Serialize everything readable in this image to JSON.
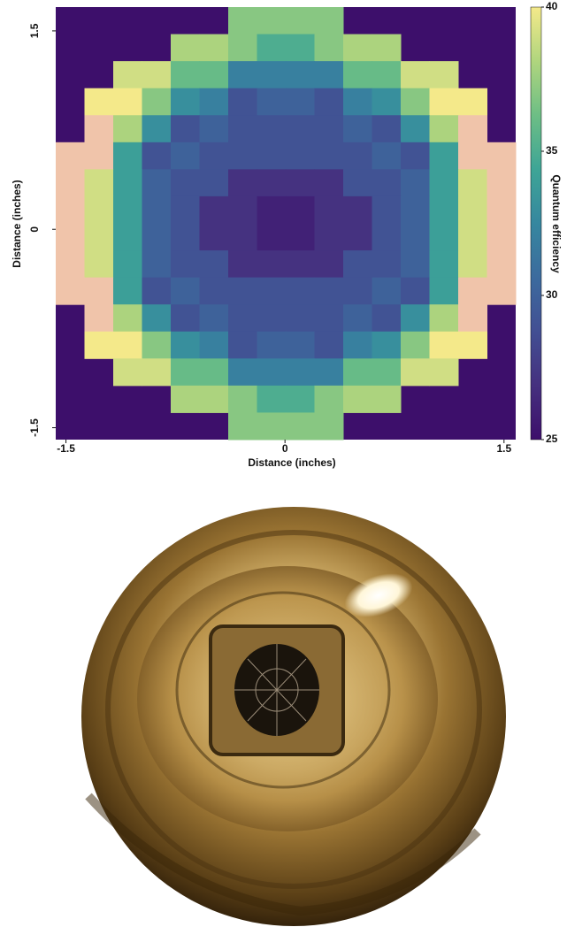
{
  "chart_data": {
    "type": "heatmap",
    "xlabel": "Distance (inches)",
    "ylabel": "Distance (inches)",
    "xlim": [
      -1.57,
      1.58
    ],
    "ylim": [
      -1.59,
      1.68
    ],
    "xticks": [
      -1.5,
      0,
      1.5
    ],
    "yticks": [
      -1.5,
      0,
      1.5
    ],
    "origin": "upper",
    "colorbar_label": "Quantum efficiency",
    "clim": [
      25,
      40
    ],
    "cticks": [
      25,
      30,
      35,
      40
    ],
    "colormap": [
      "#3d0f6b",
      "#45307f",
      "#424f93",
      "#3c6b9e",
      "#36879f",
      "#3ea596",
      "#6dbe85",
      "#b0d57e",
      "#f4e98a"
    ],
    "over_color": "#f0c4aa",
    "values": [
      [
        null,
        null,
        null,
        null,
        null,
        null,
        37,
        37,
        37,
        37,
        null,
        null,
        null,
        null,
        null,
        null
      ],
      [
        null,
        null,
        null,
        null,
        38,
        38,
        37,
        35,
        35,
        37,
        38,
        38,
        null,
        null,
        null,
        null
      ],
      [
        null,
        null,
        39,
        39,
        36,
        36,
        32,
        32,
        32,
        32,
        36,
        36,
        39,
        39,
        null,
        null
      ],
      [
        null,
        40,
        40,
        37,
        33,
        32,
        29,
        30,
        30,
        29,
        32,
        33,
        37,
        40,
        40,
        null
      ],
      [
        null,
        41,
        38,
        33,
        29,
        30,
        29,
        29,
        29,
        29,
        30,
        29,
        33,
        38,
        41,
        null
      ],
      [
        41,
        41,
        34,
        29,
        30,
        29,
        29,
        29,
        29,
        29,
        29,
        30,
        29,
        34,
        41,
        41
      ],
      [
        42,
        39,
        34,
        30,
        29,
        29,
        27,
        27,
        27,
        27,
        29,
        29,
        30,
        34,
        39,
        42
      ],
      [
        42,
        39,
        34,
        30,
        29,
        27,
        27,
        26,
        26,
        27,
        27,
        29,
        30,
        34,
        39,
        42
      ],
      [
        42,
        39,
        34,
        30,
        29,
        27,
        27,
        26,
        26,
        27,
        27,
        29,
        30,
        34,
        39,
        42
      ],
      [
        42,
        39,
        34,
        30,
        29,
        29,
        27,
        27,
        27,
        27,
        29,
        29,
        30,
        34,
        39,
        42
      ],
      [
        41,
        41,
        34,
        29,
        30,
        29,
        29,
        29,
        29,
        29,
        29,
        30,
        29,
        34,
        41,
        41
      ],
      [
        null,
        41,
        38,
        33,
        29,
        30,
        29,
        29,
        29,
        29,
        30,
        29,
        33,
        38,
        41,
        null
      ],
      [
        null,
        40,
        40,
        37,
        33,
        32,
        29,
        30,
        30,
        29,
        32,
        33,
        37,
        40,
        40,
        null
      ],
      [
        null,
        null,
        39,
        39,
        36,
        36,
        32,
        32,
        32,
        32,
        36,
        36,
        39,
        39,
        null,
        null
      ],
      [
        null,
        null,
        null,
        null,
        38,
        38,
        37,
        35,
        35,
        37,
        38,
        38,
        null,
        null,
        null,
        null
      ],
      [
        null,
        null,
        null,
        null,
        null,
        null,
        37,
        37,
        37,
        37,
        null,
        null,
        null,
        null,
        null,
        null
      ]
    ]
  }
}
